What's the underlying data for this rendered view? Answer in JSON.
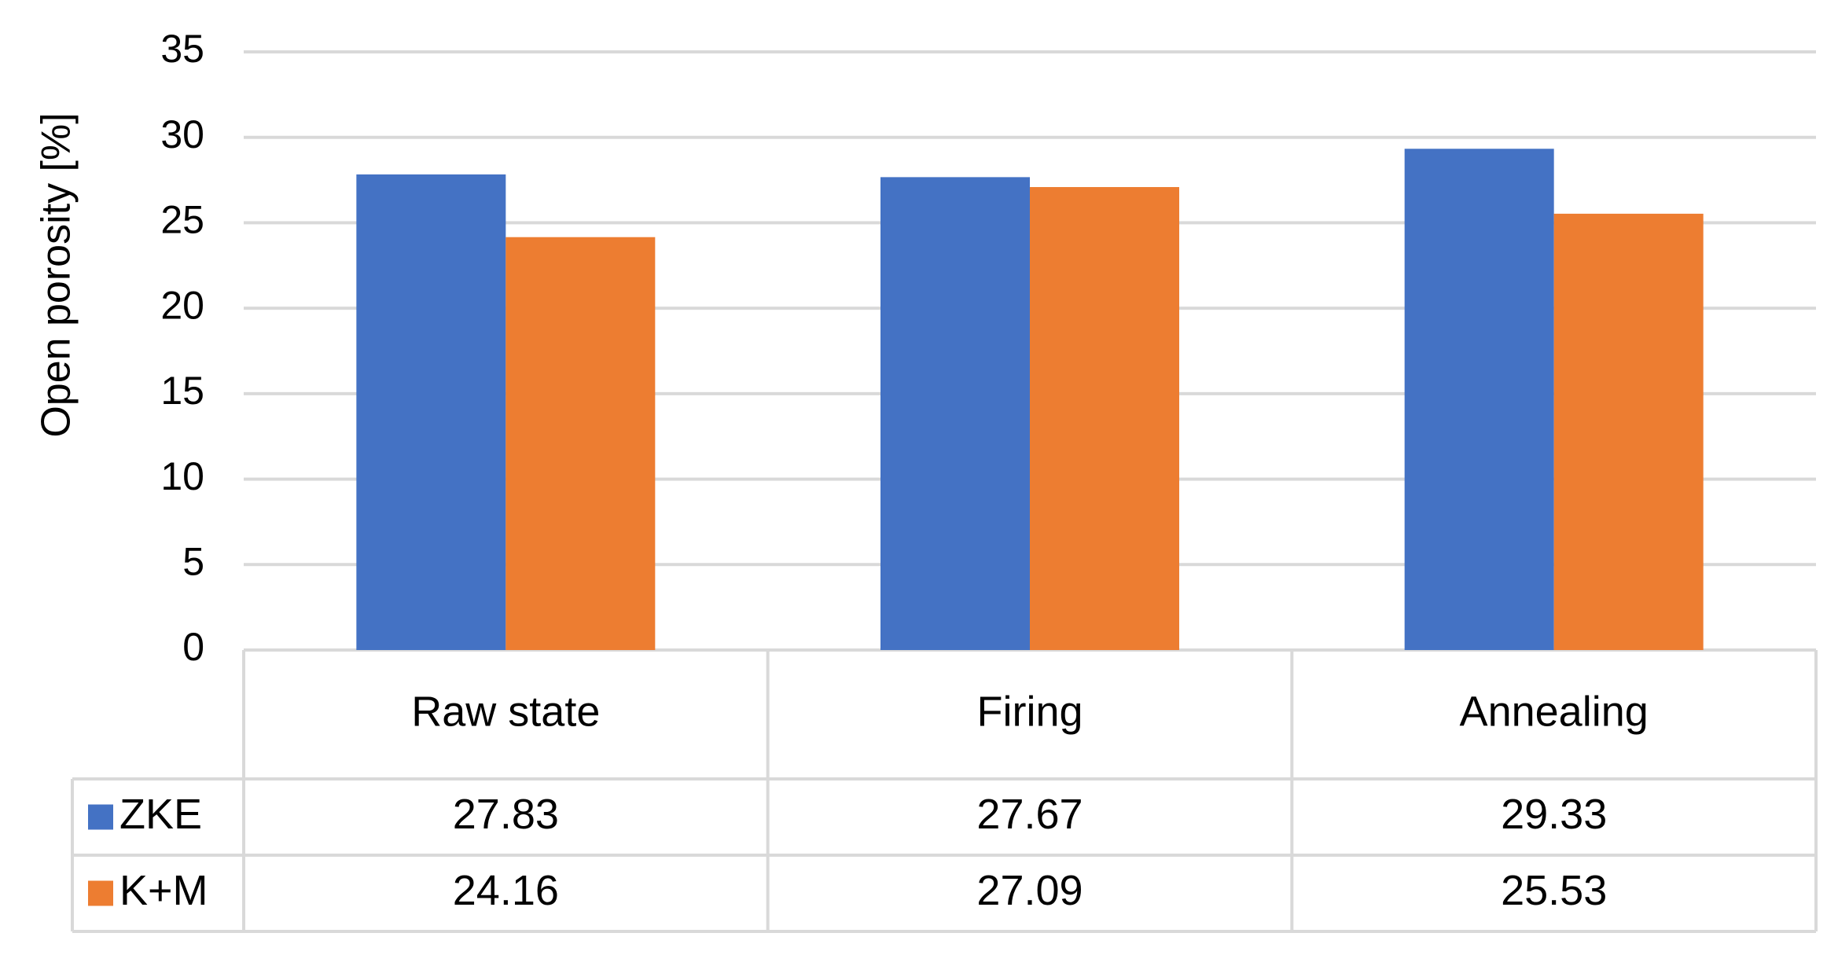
{
  "chart_data": {
    "type": "bar",
    "y_label": "Open porosity [%]",
    "categories": [
      "Raw state",
      "Firing",
      "Annealing"
    ],
    "series": [
      {
        "name": "ZKE",
        "color": "#4472c4",
        "values": [
          27.83,
          27.67,
          29.33
        ]
      },
      {
        "name": "K+M",
        "color": "#ed7d31",
        "values": [
          24.16,
          27.09,
          25.53
        ]
      }
    ],
    "ylim": [
      0,
      35
    ],
    "yticks": [
      0,
      5,
      10,
      15,
      20,
      25,
      30,
      35
    ],
    "grid": true,
    "data_table": true
  }
}
